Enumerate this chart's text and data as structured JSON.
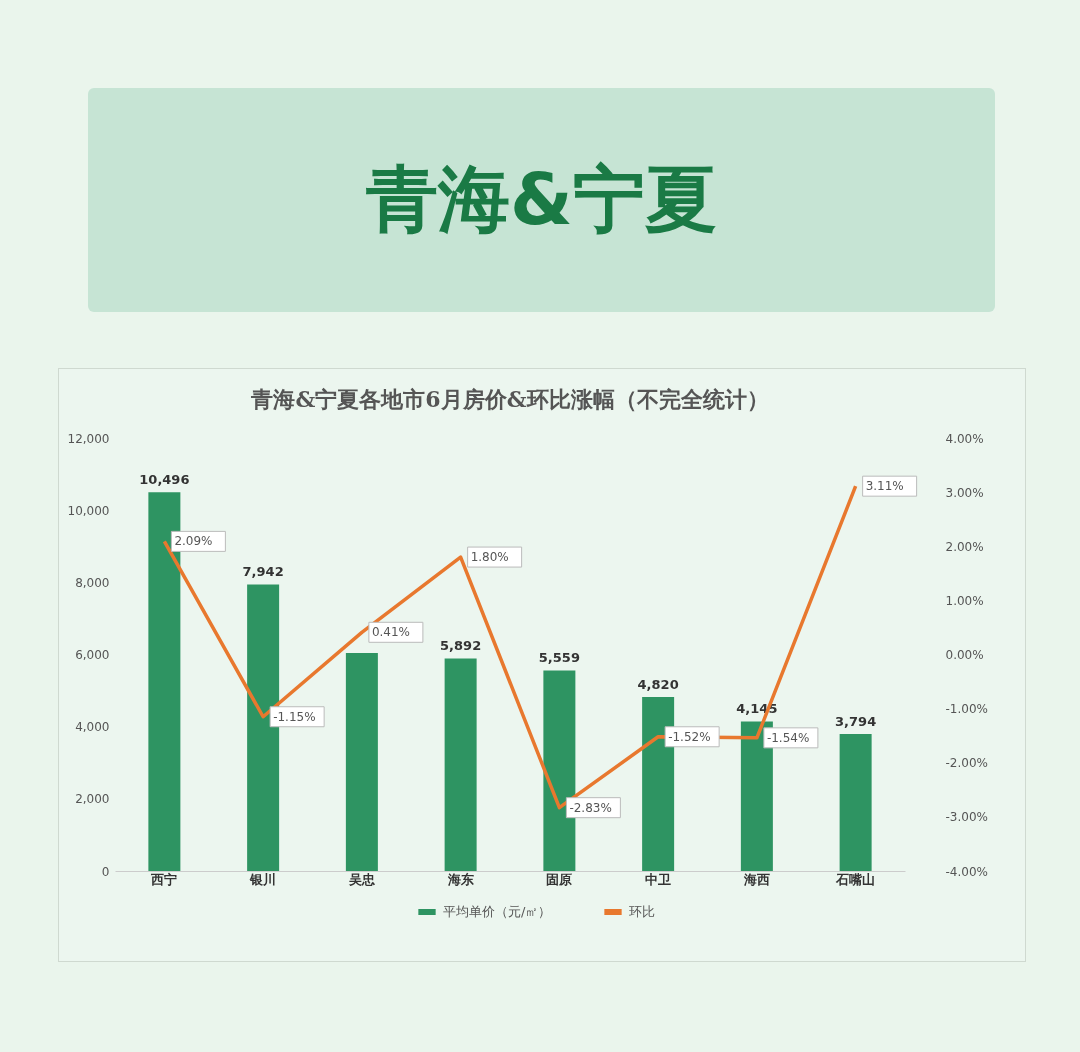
{
  "chart_data": {
    "type": "bar",
    "title": "青海&宁夏",
    "subtitle": "青海&宁夏各地市6月房价&环比涨幅（不完全统计）",
    "categories": [
      "西宁",
      "银川",
      "吴忠",
      "海东",
      "固原",
      "中卫",
      "海西",
      "石嘴山"
    ],
    "series": [
      {
        "name": "平均单价（元/㎡）",
        "color": "#2e9462",
        "values": [
          10496,
          7942,
          6040,
          5892,
          5559,
          4820,
          4145,
          3794
        ],
        "value_labels": [
          "10,496",
          "7,942",
          null,
          "5,892",
          "5,559",
          "4,820",
          "4,145",
          "3,794"
        ]
      },
      {
        "name": "环比",
        "type": "line",
        "axis": "y2",
        "color": "#e8782e",
        "values": [
          2.09,
          -1.15,
          0.41,
          1.8,
          -2.83,
          -1.52,
          -1.54,
          3.11
        ],
        "value_labels": [
          "2.09%",
          "-1.15%",
          "0.41%",
          "1.80%",
          "-2.83%",
          "-1.52%",
          "-1.54%",
          "3.11%"
        ]
      }
    ],
    "ylim": [
      0,
      12000
    ],
    "yticks": [
      0,
      {
        "value": 2000,
        "label": "2,000"
      },
      {
        "value": 4000,
        "label": "4,000"
      },
      {
        "value": 6000,
        "label": "6,000"
      },
      {
        "value": 8000,
        "label": "8,000"
      },
      {
        "value": 10000,
        "label": "10,000"
      },
      {
        "value": 12000,
        "label": "12,000"
      }
    ],
    "y2lim": [
      -4,
      4
    ],
    "y2ticks": [
      {
        "value": -4,
        "label": "-4.00%"
      },
      {
        "value": -3,
        "label": "-3.00%"
      },
      {
        "value": -2,
        "label": "-2.00%"
      },
      {
        "value": -1,
        "label": "-1.00%"
      },
      {
        "value": 0,
        "label": "0.00%"
      },
      {
        "value": 1,
        "label": "1.00%"
      },
      {
        "value": 2,
        "label": "2.00%"
      },
      {
        "value": 3,
        "label": "3.00%"
      },
      {
        "value": 4,
        "label": "4.00%"
      }
    ],
    "legend": "bottom",
    "grid": false,
    "marker": "none",
    "line_style": "solid"
  }
}
